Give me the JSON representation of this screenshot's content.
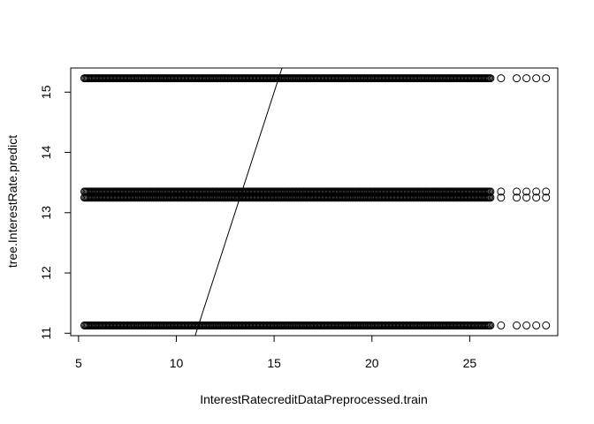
{
  "chart_data": {
    "type": "scatter",
    "title": "",
    "xlabel": "InterestRatecreditDataPreprocessed.train",
    "ylabel": "tree.InterestRate.predict",
    "xlim": [
      4.6,
      29.5
    ],
    "ylim": [
      10.96,
      15.4
    ],
    "x_ticks": [
      5,
      10,
      15,
      20,
      25
    ],
    "y_ticks": [
      11,
      12,
      13,
      14,
      15
    ],
    "grid": false,
    "legend": "none",
    "series": [
      {
        "y": 15.23,
        "x_dense_range": [
          5.3,
          26.1
        ],
        "x_sparse": [
          26.6,
          27.4,
          27.9,
          28.4,
          28.9
        ]
      },
      {
        "y": 13.35,
        "x_dense_range": [
          5.3,
          26.1
        ],
        "x_sparse": [
          26.6,
          27.4,
          27.9,
          28.4,
          28.9
        ]
      },
      {
        "y": 13.25,
        "x_dense_range": [
          5.3,
          26.1
        ],
        "x_sparse": [
          26.6,
          27.4,
          27.9,
          28.4,
          28.9
        ]
      },
      {
        "y": 11.13,
        "x_dense_range": [
          5.3,
          26.1
        ],
        "x_sparse": [
          26.6,
          27.4,
          27.9,
          28.4,
          28.9
        ]
      }
    ],
    "reference_line": {
      "intercept": 0,
      "slope": 1
    }
  }
}
